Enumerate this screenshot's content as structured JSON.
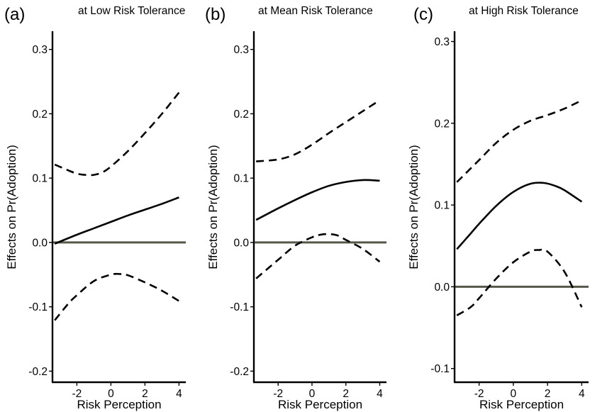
{
  "chart_data": [
    {
      "type": "line",
      "panel_label": "(a)",
      "title": "at Low Risk Tolerance",
      "xlabel": "Risk Perception",
      "ylabel": "Effects on Pr(Adoption)",
      "xlim": [
        -3.6,
        4.4
      ],
      "ylim": [
        -0.215,
        0.325
      ],
      "x_ticks": [
        -2,
        0,
        2,
        4
      ],
      "y_ticks": [
        -0.2,
        -0.1,
        0.0,
        0.1,
        0.2,
        0.3
      ],
      "y_tick_labels": [
        "-0.2",
        "-0.1",
        "0.0",
        "0.1",
        "0.2",
        "0.3"
      ],
      "grid": false,
      "reference_line": {
        "y": 0.0,
        "color": "#55594a"
      },
      "series": [
        {
          "role": "estimate",
          "style": "solid",
          "x": [
            -3.3,
            -2,
            -1,
            0,
            1,
            2,
            3,
            4
          ],
          "y": [
            -0.002,
            0.012,
            0.022,
            0.032,
            0.042,
            0.051,
            0.06,
            0.07
          ]
        },
        {
          "role": "upper",
          "style": "dashed",
          "x": [
            -3.3,
            -2.5,
            -2,
            -1.5,
            -1,
            -0.5,
            0,
            1,
            2,
            3,
            4
          ],
          "y": [
            0.121,
            0.112,
            0.107,
            0.105,
            0.105,
            0.109,
            0.118,
            0.142,
            0.17,
            0.2,
            0.233
          ]
        },
        {
          "role": "lower",
          "style": "dashed",
          "x": [
            -3.3,
            -2.5,
            -2,
            -1,
            0,
            0.5,
            1,
            2,
            3,
            4
          ],
          "y": [
            -0.121,
            -0.095,
            -0.082,
            -0.06,
            -0.05,
            -0.049,
            -0.051,
            -0.062,
            -0.075,
            -0.091
          ]
        }
      ]
    },
    {
      "type": "line",
      "panel_label": "(b)",
      "title": "at Mean Risk Tolerance",
      "xlabel": "Risk Perception",
      "ylabel": "Effects on Pr(Adoption)",
      "xlim": [
        -3.6,
        4.4
      ],
      "ylim": [
        -0.215,
        0.325
      ],
      "x_ticks": [
        -2,
        0,
        2,
        4
      ],
      "y_ticks": [
        -0.2,
        -0.1,
        0.0,
        0.1,
        0.2,
        0.3
      ],
      "y_tick_labels": [
        "-0.2",
        "-0.1",
        "0.0",
        "0.1",
        "0.2",
        "0.3"
      ],
      "grid": false,
      "reference_line": {
        "y": 0.0,
        "color": "#55594a"
      },
      "series": [
        {
          "role": "estimate",
          "style": "solid",
          "x": [
            -3.3,
            -2,
            -1,
            0,
            1,
            2,
            3,
            4
          ],
          "y": [
            0.035,
            0.053,
            0.066,
            0.078,
            0.088,
            0.094,
            0.097,
            0.096
          ]
        },
        {
          "role": "upper",
          "style": "dashed",
          "x": [
            -3.3,
            -2,
            -1,
            0,
            1,
            2,
            3,
            4
          ],
          "y": [
            0.126,
            0.129,
            0.137,
            0.152,
            0.17,
            0.187,
            0.204,
            0.221
          ]
        },
        {
          "role": "lower",
          "style": "dashed",
          "x": [
            -3.3,
            -2,
            -1,
            0,
            0.5,
            1,
            1.5,
            2,
            3,
            4
          ],
          "y": [
            -0.056,
            -0.027,
            -0.005,
            0.008,
            0.012,
            0.013,
            0.011,
            0.004,
            -0.01,
            -0.03
          ]
        }
      ]
    },
    {
      "type": "line",
      "panel_label": "(c)",
      "title": "at High Risk Tolerance",
      "xlabel": "Risk Perception",
      "ylabel": "Effects on Pr(Adoption)",
      "xlim": [
        -3.6,
        4.4
      ],
      "ylim": [
        -0.115,
        0.31
      ],
      "x_ticks": [
        -2,
        0,
        2,
        4
      ],
      "y_ticks": [
        -0.1,
        0.0,
        0.1,
        0.2,
        0.3
      ],
      "y_tick_labels": [
        "-0.1",
        "0.0",
        "0.1",
        "0.2",
        "0.3"
      ],
      "grid": false,
      "reference_line": {
        "y": 0.0,
        "color": "#55594a"
      },
      "series": [
        {
          "role": "estimate",
          "style": "solid",
          "x": [
            -3.3,
            -2.5,
            -2,
            -1,
            0,
            1,
            1.8,
            2.5,
            3,
            4
          ],
          "y": [
            0.046,
            0.065,
            0.077,
            0.099,
            0.116,
            0.126,
            0.127,
            0.123,
            0.118,
            0.104
          ]
        },
        {
          "role": "upper",
          "style": "dashed",
          "x": [
            -3.3,
            -2,
            -1,
            0,
            1,
            2,
            3,
            4
          ],
          "y": [
            0.128,
            0.155,
            0.176,
            0.192,
            0.203,
            0.21,
            0.218,
            0.228
          ]
        },
        {
          "role": "lower",
          "style": "dashed",
          "x": [
            -3.3,
            -2.5,
            -2,
            -1,
            0,
            1,
            1.5,
            2,
            3,
            4
          ],
          "y": [
            -0.035,
            -0.025,
            -0.014,
            0.01,
            0.03,
            0.043,
            0.045,
            0.043,
            0.018,
            -0.025
          ]
        }
      ]
    }
  ]
}
